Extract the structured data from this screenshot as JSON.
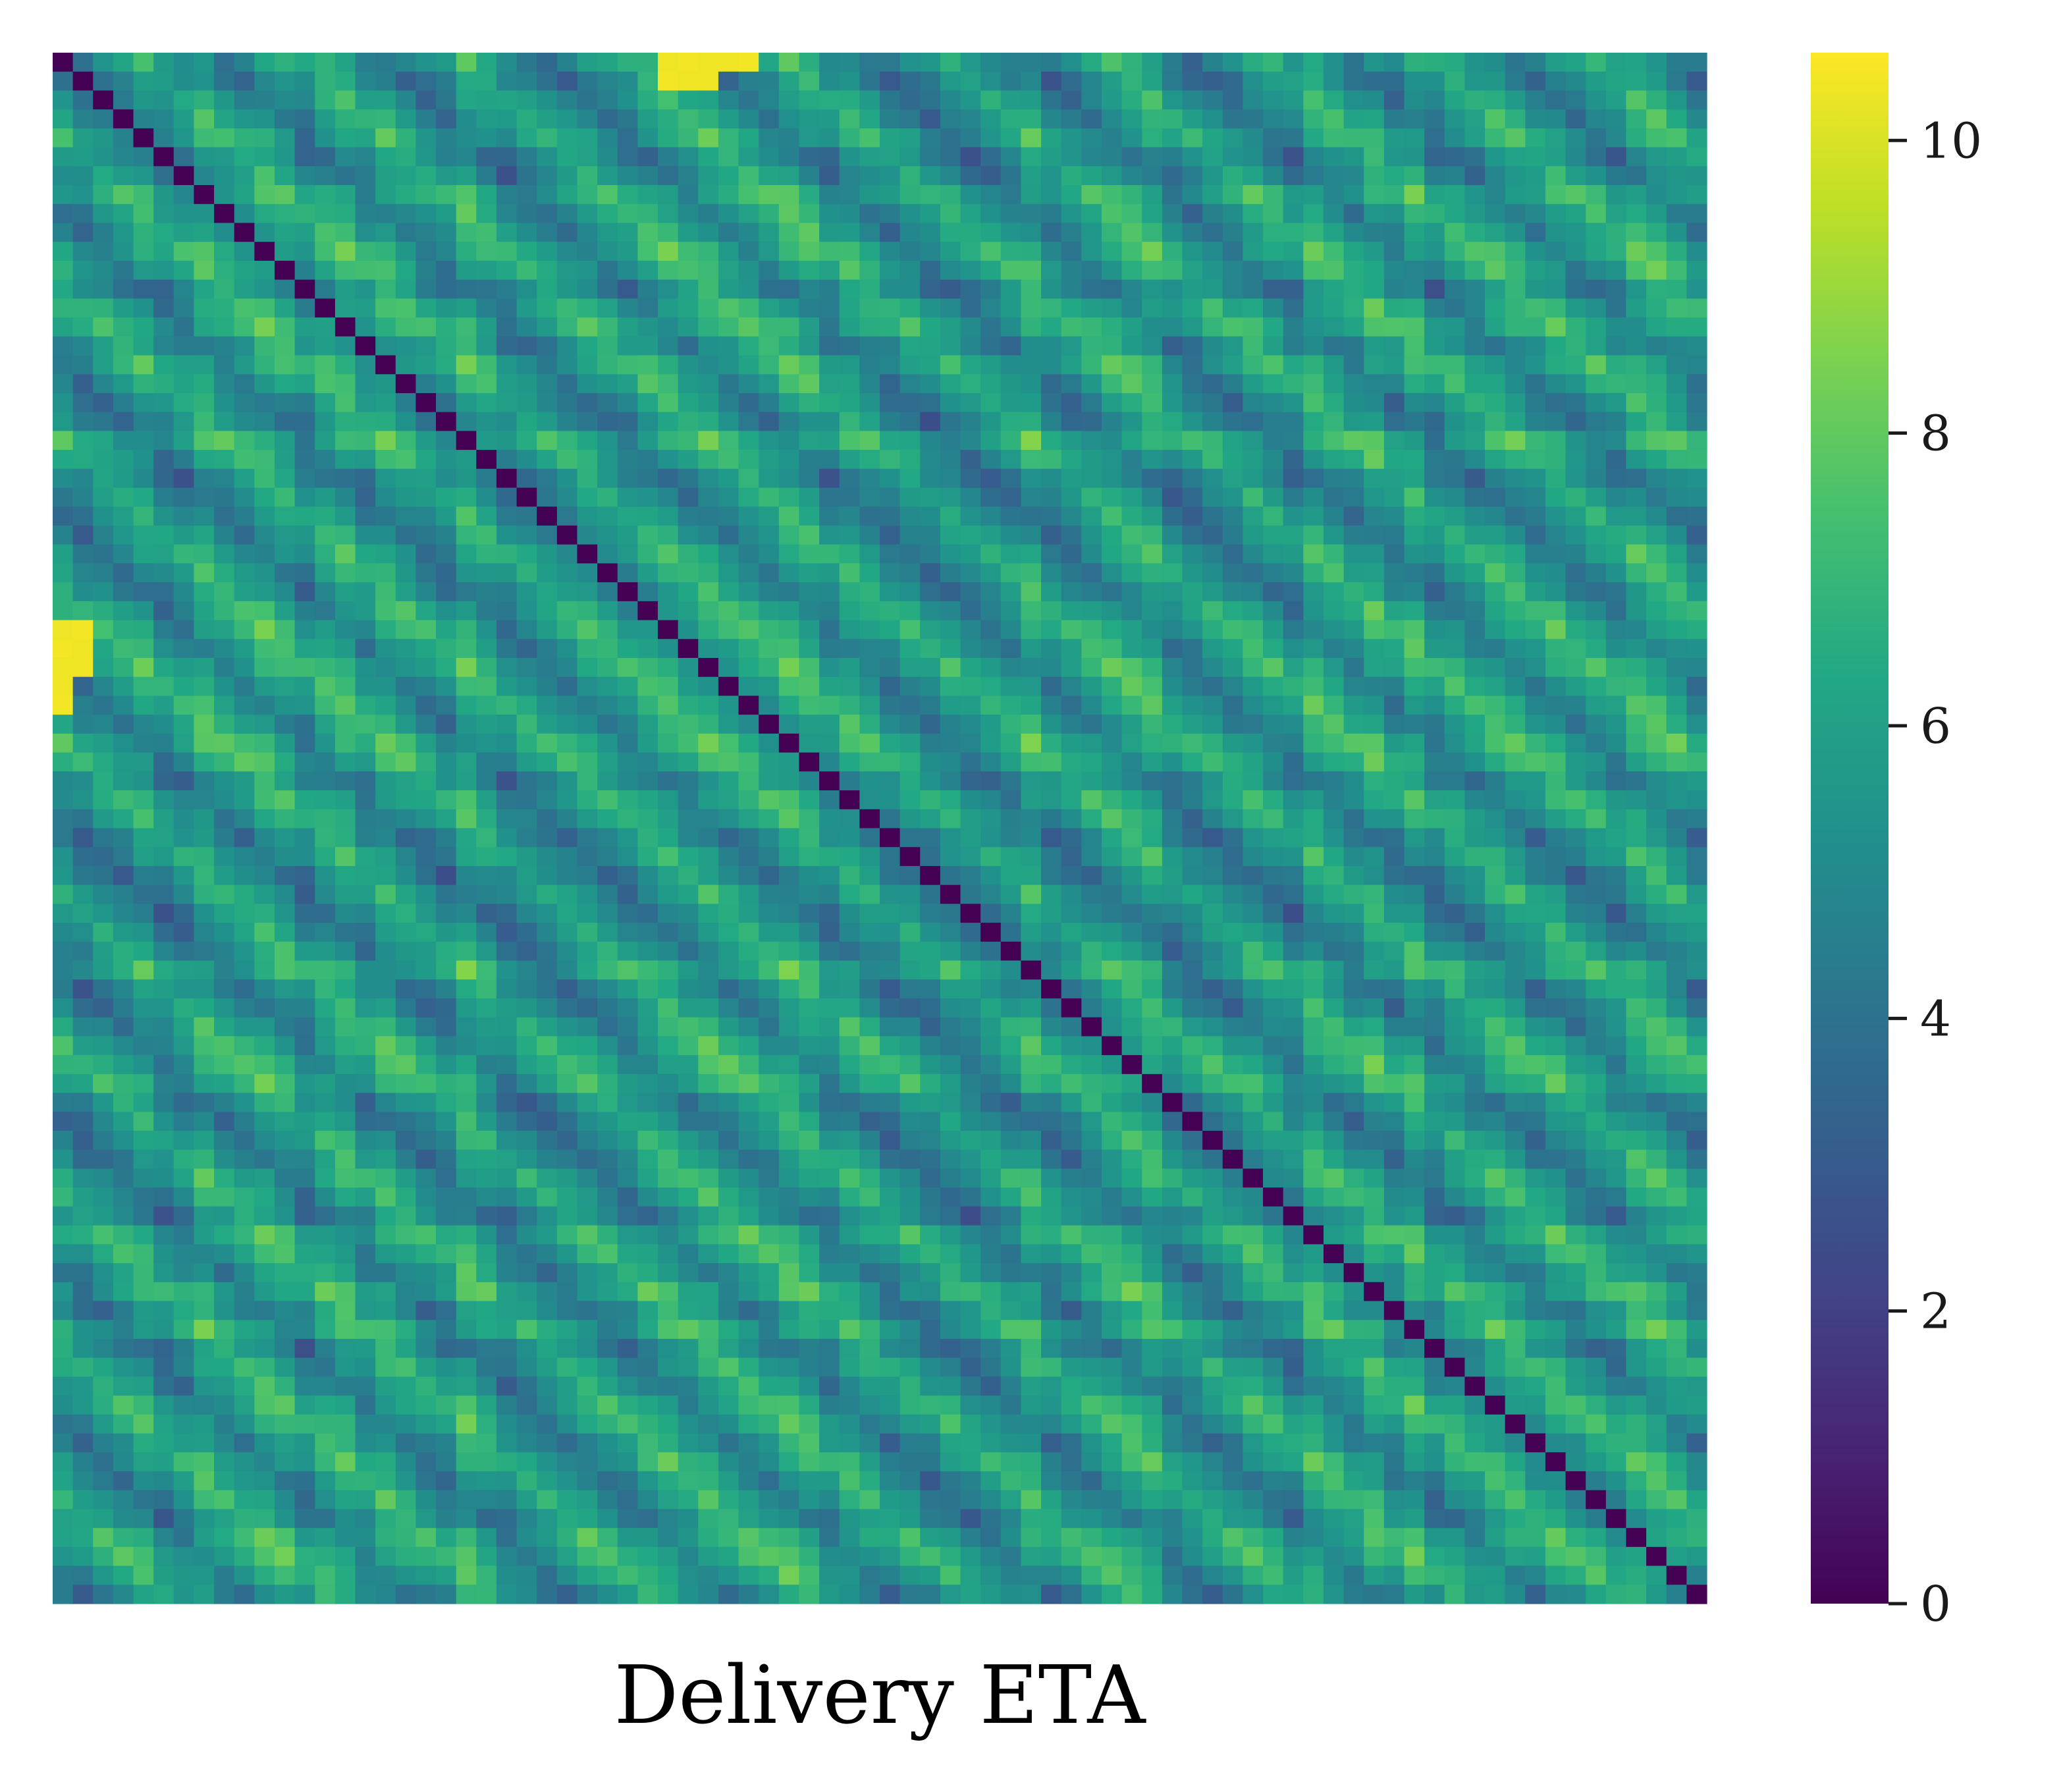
{
  "chart_data": {
    "type": "heatmap",
    "title": "",
    "xlabel": "Delivery ETA",
    "ylabel": "",
    "rows": 82,
    "cols": 82,
    "colormap": "viridis",
    "colorbar": {
      "vmin": 0,
      "vmax": 10.6,
      "ticks": [
        0,
        2,
        4,
        6,
        8,
        10
      ],
      "tick_labels": [
        "0",
        "2",
        "4",
        "6",
        "8",
        "10"
      ]
    },
    "x_ticks_shown": false,
    "y_ticks_shown": false,
    "diagonal_value": 0,
    "typical_off_diagonal_range": [
      2,
      8
    ],
    "highlights": [
      {
        "region": "row 0 near cols 32-34",
        "approx_value": 10.5
      },
      {
        "region": "rows 30-32 near cols 0-1",
        "approx_value": 10.5
      }
    ],
    "data_note": "Symmetric distance-like matrix; zero diagonal; periodic block pattern with values mostly between 2 and 8, peaking near 10.6."
  }
}
